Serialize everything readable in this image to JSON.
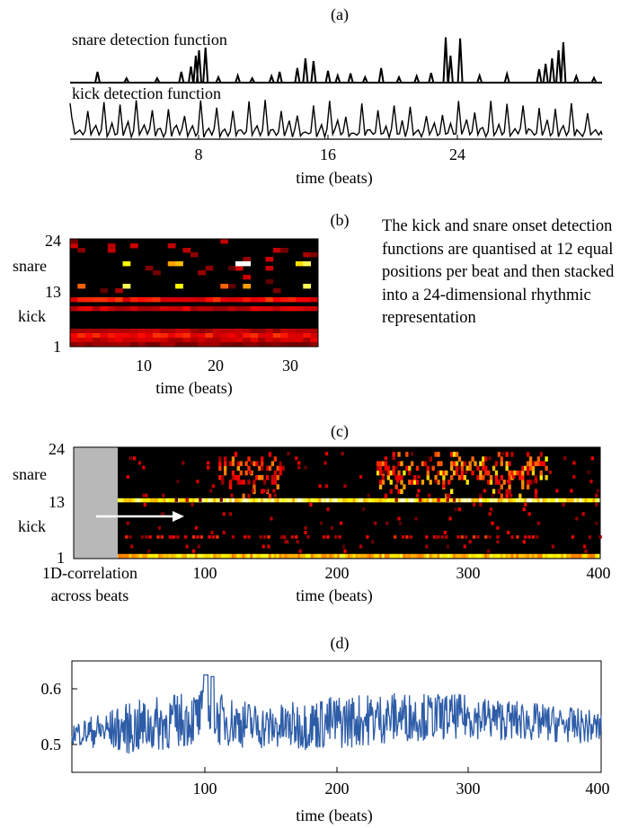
{
  "panels": {
    "a": {
      "label": "(a)",
      "snare_label": "snare detection function",
      "kick_label": "kick detection function",
      "xticks": [
        "8",
        "16",
        "24"
      ],
      "xlabel": "time (beats)"
    },
    "b": {
      "label": "(b)",
      "yticks": [
        "24",
        "13",
        "1"
      ],
      "snare_label": "snare",
      "kick_label": "kick",
      "xticks": [
        "10",
        "20",
        "30"
      ],
      "xlabel": "time (beats)",
      "caption": "The kick and snare onset detection functions are quantised at 12 equal positions per beat and then stacked into a 24-dimensional rhythmic representation"
    },
    "c": {
      "label": "(c)",
      "yticks": [
        "24",
        "13",
        "1"
      ],
      "snare_label": "snare",
      "kick_label": "kick",
      "xticks": [
        "100",
        "200",
        "300",
        "400"
      ],
      "xlabel": "time (beats)",
      "corr_label_1": "1D-correlation",
      "corr_label_2": "across beats"
    },
    "d": {
      "label": "(d)",
      "yticks": [
        "0.6",
        "0.5"
      ],
      "xticks": [
        "100",
        "200",
        "300",
        "400"
      ],
      "xlabel": "time (beats)"
    }
  },
  "colors": {
    "line": "#2e5da8",
    "heat_low": "#000000",
    "heat_high": "#ffffff",
    "window": "#b8b8b8"
  },
  "chart_data": [
    {
      "panel": "a",
      "type": "line",
      "title": "(a)",
      "xlabel": "time (beats)",
      "xlim": [
        0,
        33
      ],
      "series": [
        {
          "name": "snare detection function",
          "peaks": [
            [
              1.7,
              0.2
            ],
            [
              3.5,
              0.08
            ],
            [
              5.4,
              0.08
            ],
            [
              6.9,
              0.2
            ],
            [
              7.5,
              0.3
            ],
            [
              7.8,
              0.5
            ],
            [
              8.0,
              0.6
            ],
            [
              8.4,
              0.65
            ],
            [
              9.2,
              0.1
            ],
            [
              10.4,
              0.13
            ],
            [
              11.3,
              0.08
            ],
            [
              12.5,
              0.12
            ],
            [
              13.0,
              0.2
            ],
            [
              14.1,
              0.27
            ],
            [
              14.6,
              0.45
            ],
            [
              15.1,
              0.4
            ],
            [
              16.0,
              0.22
            ],
            [
              16.6,
              0.13
            ],
            [
              17.4,
              0.17
            ],
            [
              18.3,
              0.1
            ],
            [
              19.3,
              0.27
            ],
            [
              20.4,
              0.1
            ],
            [
              21.5,
              0.12
            ],
            [
              22.4,
              0.18
            ],
            [
              23.3,
              0.84
            ],
            [
              23.6,
              0.5
            ],
            [
              24.2,
              0.82
            ],
            [
              25.4,
              0.13
            ],
            [
              27.1,
              0.16
            ],
            [
              29.1,
              0.25
            ],
            [
              29.5,
              0.35
            ],
            [
              29.9,
              0.45
            ],
            [
              30.3,
              0.6
            ],
            [
              30.6,
              0.75
            ],
            [
              31.4,
              0.12
            ],
            [
              32.5,
              0.09
            ]
          ]
        },
        {
          "name": "kick detection function",
          "description": "periodic peaks at every beat, height between 0.3 and 1.0"
        }
      ]
    },
    {
      "panel": "b",
      "type": "heatmap",
      "title": "(b)",
      "xlabel": "time (beats)",
      "xlim": [
        1,
        33
      ],
      "ylim": [
        1,
        24
      ],
      "rows": [
        "kick 1-12",
        "snare 13-24"
      ],
      "hot_cells": [
        [
          8,
          19,
          0.85
        ],
        [
          14,
          19,
          0.7
        ],
        [
          15,
          19,
          0.75
        ],
        [
          23,
          19,
          1.0
        ],
        [
          24,
          19,
          1.0
        ],
        [
          31,
          19,
          0.8
        ],
        [
          32,
          19,
          0.9
        ],
        [
          2,
          14,
          0.6
        ],
        [
          8,
          14,
          0.9
        ],
        [
          15,
          14,
          0.85
        ],
        [
          21,
          14,
          0.6
        ],
        [
          24,
          14,
          0.7
        ],
        [
          32,
          14,
          0.9
        ]
      ],
      "steady_rows": [
        [
          11,
          0.45
        ],
        [
          9,
          0.35
        ],
        [
          4,
          0.3
        ],
        [
          3,
          0.45
        ],
        [
          2,
          0.35
        ],
        [
          1,
          0.25
        ]
      ]
    },
    {
      "panel": "c",
      "type": "heatmap",
      "title": "(c)",
      "xlabel": "time (beats)",
      "xlim": [
        1,
        400
      ],
      "ylim": [
        1,
        24
      ],
      "window_beats": [
        1,
        33
      ],
      "snare_bursts": [
        [
          110,
          160,
          0.7
        ],
        [
          230,
          360,
          0.85
        ]
      ],
      "steady_rows": [
        [
          13,
          0.95
        ],
        [
          1,
          0.85
        ]
      ]
    },
    {
      "panel": "d",
      "type": "line",
      "title": "(d)",
      "xlabel": "time (beats)",
      "xlim": [
        1,
        400
      ],
      "ylim": [
        0.45,
        0.65
      ],
      "series": [
        {
          "segments": [
            [
              1,
              0.52,
              0.02
            ],
            [
              50,
              0.53,
              0.05
            ],
            [
              100,
              0.55,
              0.05
            ],
            [
              150,
              0.53,
              0.04
            ],
            [
              200,
              0.54,
              0.05
            ],
            [
              250,
              0.55,
              0.045
            ],
            [
              300,
              0.55,
              0.04
            ],
            [
              350,
              0.54,
              0.035
            ],
            [
              400,
              0.53,
              0.03
            ]
          ],
          "description": "noisy similarity curve oscillating between about 0.48 and 0.63"
        }
      ]
    }
  ]
}
